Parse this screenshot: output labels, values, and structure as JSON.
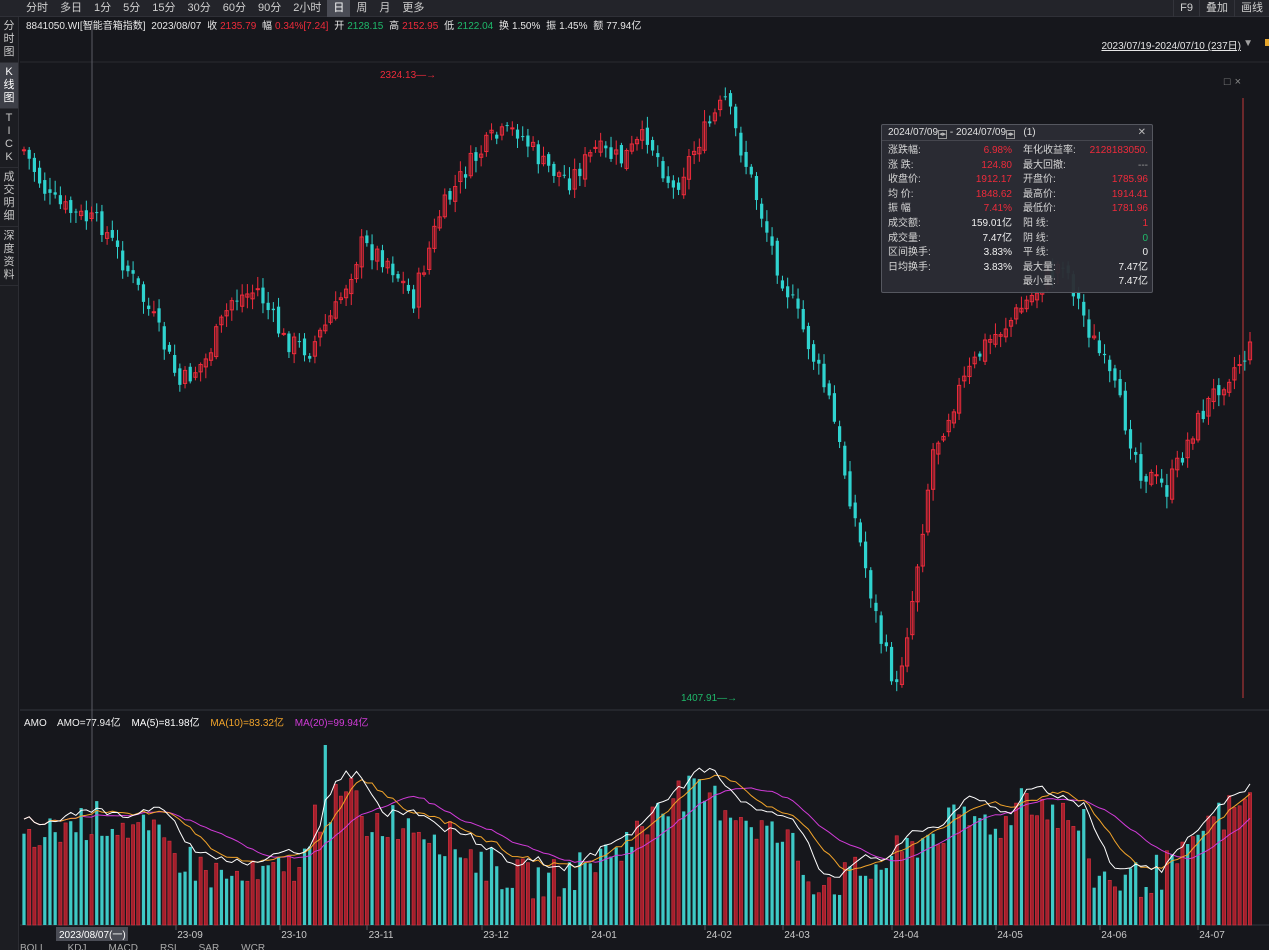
{
  "periods": [
    {
      "label": "分时",
      "active": false
    },
    {
      "label": "多日",
      "active": false
    },
    {
      "label": "1分",
      "active": false
    },
    {
      "label": "5分",
      "active": false
    },
    {
      "label": "15分",
      "active": false
    },
    {
      "label": "30分",
      "active": false
    },
    {
      "label": "60分",
      "active": false
    },
    {
      "label": "90分",
      "active": false
    },
    {
      "label": "2小时",
      "active": false
    },
    {
      "label": "日",
      "active": true
    },
    {
      "label": "周",
      "active": false
    },
    {
      "label": "月",
      "active": false
    },
    {
      "label": "更多",
      "active": false
    }
  ],
  "right_tools": [
    "F9",
    "叠加",
    "画线"
  ],
  "side_tabs": [
    {
      "label": "分时图",
      "active": false
    },
    {
      "label": "K线图",
      "active": true
    },
    {
      "label": "TICK",
      "active": false
    },
    {
      "label": "成交明细",
      "active": false
    },
    {
      "label": "深度资料",
      "active": false
    }
  ],
  "info_bar": {
    "code_name": "8841050.WI[智能音箱指数]",
    "date": "2023/08/07",
    "close_label": "收",
    "close": "2135.79",
    "change_label": "幅",
    "change": "0.34%[7.24]",
    "open_label": "开",
    "open": "2128.15",
    "high_label": "高",
    "high": "2152.95",
    "low_label": "低",
    "low": "2122.04",
    "turnover_label": "换",
    "turnover": "1.50%",
    "amplitude_label": "振",
    "amplitude": "1.45%",
    "amount_label": "额",
    "amount": "77.94亿"
  },
  "range_selector": "2023/07/19-2024/07/10 (237日)",
  "max_marker": "2324.13",
  "min_marker": "1407.91",
  "popup": {
    "start_date": "2024/07/09",
    "separator": "-",
    "end_date": "2024/07/09",
    "count": "(1)",
    "left_rows": [
      {
        "label": "涨跌幅:",
        "value": "6.98%",
        "color": "red"
      },
      {
        "label": "涨  跌:",
        "value": "124.80",
        "color": "red"
      },
      {
        "label": "收盘价:",
        "value": "1912.17",
        "color": "red"
      },
      {
        "label": "均  价:",
        "value": "1848.62",
        "color": "red"
      },
      {
        "label": "振  幅",
        "value": "7.41%",
        "color": "red"
      },
      {
        "label": "成交额:",
        "value": "159.01亿",
        "color": "white"
      },
      {
        "label": "成交量:",
        "value": "7.47亿",
        "color": "white"
      },
      {
        "label": "区间换手:",
        "value": "3.83%",
        "color": "white"
      },
      {
        "label": "日均换手:",
        "value": "3.83%",
        "color": "white"
      }
    ],
    "right_rows": [
      {
        "label": "年化收益率:",
        "value": "2128183050.",
        "color": "red"
      },
      {
        "label": "最大回撤:",
        "value": "---",
        "color": "gray"
      },
      {
        "label": "开盘价:",
        "value": "1785.96",
        "color": "red"
      },
      {
        "label": "最高价:",
        "value": "1914.41",
        "color": "red"
      },
      {
        "label": "最低价:",
        "value": "1781.96",
        "color": "red"
      },
      {
        "label": "阳  线:",
        "value": "1",
        "color": "red"
      },
      {
        "label": "阴  线:",
        "value": "0",
        "color": "green"
      },
      {
        "label": "平  线:",
        "value": "0",
        "color": "white"
      },
      {
        "label": "最大量:",
        "value": "7.47亿",
        "color": "white"
      },
      {
        "label": "最小量:",
        "value": "7.47亿",
        "color": "white"
      }
    ]
  },
  "volume_info": {
    "title": "AMO",
    "amo": "AMO=77.94亿",
    "ma5": "MA(5)=81.98亿",
    "ma10": "MA(10)=83.32亿",
    "ma20": "MA(20)=99.94亿"
  },
  "x_axis": {
    "selected_label": "2023/08/07(一)",
    "months": [
      "23-09",
      "23-10",
      "23-11",
      "23-12",
      "24-01",
      "24-02",
      "24-03",
      "24-04",
      "24-05",
      "24-06",
      "24-07"
    ]
  },
  "bottom_tabs": [
    "BOLL",
    "KDJ",
    "MACD",
    "RSI",
    "SAR",
    "WCR"
  ],
  "colors": {
    "background": "#16171c",
    "up": "#ee2b3b",
    "down": "#2fd3cf",
    "ma5": "#ffffff",
    "ma10": "#f2a42a",
    "ma20": "#d13bd8"
  },
  "chart_data": {
    "type": "candlestick",
    "y_range": [
      1407.91,
      2324.13
    ],
    "extremes": {
      "max": 2324.13,
      "min": 1407.91
    },
    "x_categories_months": [
      "23-09",
      "23-10",
      "23-11",
      "23-12",
      "24-01",
      "24-02",
      "24-03",
      "24-04",
      "24-05",
      "24-06",
      "24-07"
    ],
    "last_bar": {
      "open": 1785.96,
      "high": 1914.41,
      "low": 1781.96,
      "close": 1912.17
    },
    "volume_indicator": {
      "amo_last": "77.94亿",
      "ma5": "81.98亿",
      "ma10": "83.32亿",
      "ma20": "99.94亿"
    }
  }
}
